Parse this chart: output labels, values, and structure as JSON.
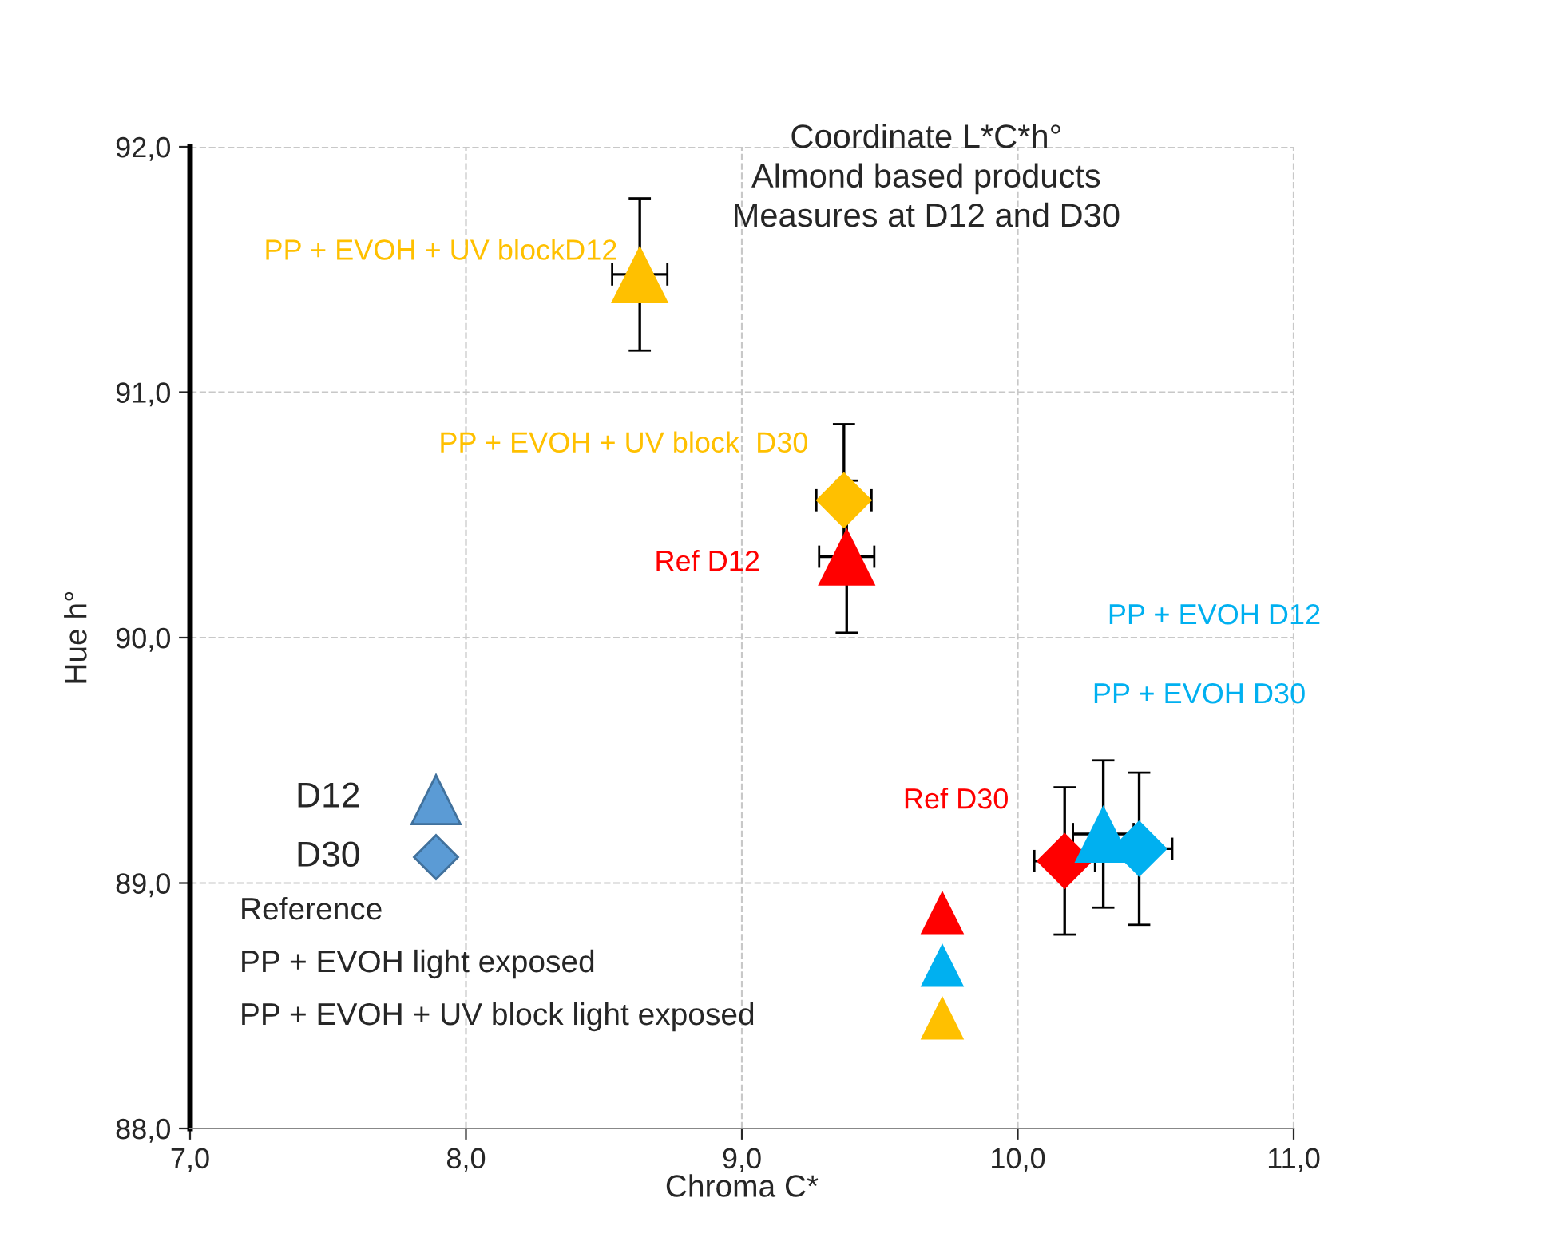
{
  "chart_data": {
    "type": "scatter",
    "title": "Coordinate L*C*h°\nAlmond based products\nMeasures at D12 and D30",
    "xlabel": "Chroma C*",
    "ylabel": "Hue h°",
    "xlim": [
      7.0,
      11.0
    ],
    "ylim": [
      88.0,
      92.0
    ],
    "xticks": [
      {
        "value": 7,
        "label": "7,0"
      },
      {
        "value": 8,
        "label": "8,0"
      },
      {
        "value": 9,
        "label": "9,0"
      },
      {
        "value": 10,
        "label": "10,0"
      },
      {
        "value": 11,
        "label": "11,0"
      }
    ],
    "yticks": [
      {
        "value": 88,
        "label": "88,0"
      },
      {
        "value": 89,
        "label": "89,0"
      },
      {
        "value": 90,
        "label": "90,0"
      },
      {
        "value": 91,
        "label": "91,0"
      },
      {
        "value": 92,
        "label": "92,0"
      }
    ],
    "grid": true,
    "series": [
      {
        "color": "#ffc000",
        "marker": "triangle",
        "x": [
          8.63
        ],
        "values": [
          91.48
        ],
        "errors": [
          0.31
        ],
        "xerrors": [
          0.1
        ]
      },
      {
        "color": "#ffc000",
        "marker": "diamond",
        "x": [
          9.37
        ],
        "values": [
          90.56
        ],
        "errors": [
          0.31
        ],
        "xerrors": [
          0.1
        ]
      },
      {
        "color": "#ff0000",
        "marker": "triangle",
        "x": [
          9.38
        ],
        "values": [
          90.33
        ],
        "errors": [
          0.31
        ],
        "xerrors": [
          0.1
        ]
      },
      {
        "color": "#ff0000",
        "marker": "diamond",
        "x": [
          10.17
        ],
        "values": [
          89.09
        ],
        "errors": [
          0.3
        ],
        "xerrors": [
          0.11
        ]
      },
      {
        "color": "#00b0f0",
        "marker": "triangle",
        "x": [
          10.31
        ],
        "values": [
          89.2
        ],
        "errors": [
          0.3
        ],
        "xerrors": [
          0.11
        ]
      },
      {
        "color": "#00b0f0",
        "marker": "diamond",
        "x": [
          10.44
        ],
        "values": [
          89.14
        ],
        "errors": [
          0.31
        ],
        "xerrors": [
          0.12
        ]
      }
    ],
    "annotations": [
      "PP + EVOH + UV blockD12",
      "PP + EVOH + UV block  D30",
      "Ref D12",
      "PP + EVOH D12",
      "PP + EVOH D30",
      "Ref D30",
      "D12",
      "D30",
      "Reference",
      "PP + EVOH light exposed",
      "PP + EVOH + UV block light exposed"
    ]
  }
}
